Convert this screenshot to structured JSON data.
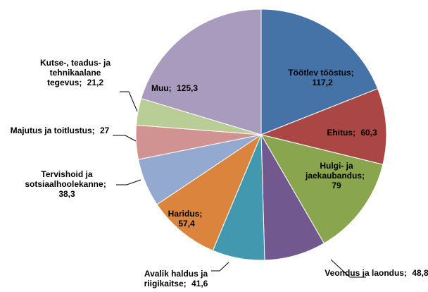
{
  "chart_data": {
    "type": "pie",
    "categories": [
      "Töötlev tööstus",
      "Ehitus",
      "Hulgi- ja jaekaubandus",
      "Veondus ja laondus",
      "Avalik haldus ja riigikaitse",
      "Haridus",
      "Tervishoid ja sotsiaalhoolekanne",
      "Majutus ja toitlustus",
      "Kutse-, teadus- ja tehnikaalane tegevus",
      "Muu"
    ],
    "values": [
      117.2,
      60.3,
      79,
      48.8,
      41.6,
      57.4,
      38.3,
      27,
      21.2,
      125.3
    ],
    "value_labels": [
      "117,2",
      "60,3",
      "79",
      "48,8",
      "41,6",
      "57,4",
      "38,3",
      "27",
      "21,2",
      "125,3"
    ],
    "colors": [
      "#4572a7",
      "#aa4643",
      "#89a54e",
      "#71588f",
      "#4198af",
      "#db843d",
      "#93a9cf",
      "#d19392",
      "#b9cd96",
      "#a99bbd"
    ]
  }
}
